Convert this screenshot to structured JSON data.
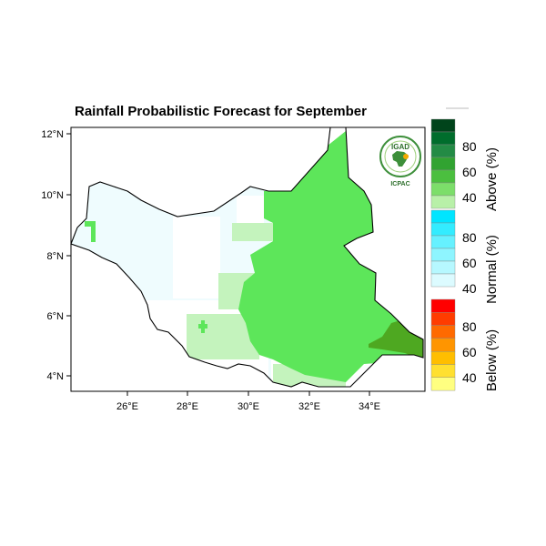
{
  "title": "Rainfall Probabilistic Forecast for September",
  "logo": {
    "top_text": "IGAD",
    "bottom_text": "ICPAC"
  },
  "axes": {
    "x_ticks": [
      "26°E",
      "28°E",
      "30°E",
      "32°E",
      "34°E"
    ],
    "y_ticks": [
      "12°N",
      "10°N",
      "8°N",
      "6°N",
      "4°N"
    ]
  },
  "legend": {
    "above": {
      "title": "Above (%)",
      "labels": [
        "80",
        "60",
        "40"
      ],
      "colors": [
        "#00441b",
        "#006d2c",
        "#238b45",
        "#31a331",
        "#4bbf3f",
        "#7cde6a",
        "#b8f0a8"
      ]
    },
    "normal": {
      "title": "Normal (%)",
      "labels": [
        "80",
        "60",
        "40"
      ],
      "colors": [
        "#00e5ff",
        "#33ecff",
        "#66f1ff",
        "#8ef5ff",
        "#b6f8ff",
        "#dcfbff"
      ]
    },
    "below": {
      "title": "Below (%)",
      "labels": [
        "80",
        "60",
        "40"
      ],
      "colors": [
        "#ff0000",
        "#ff3c00",
        "#ff6a00",
        "#ff9500",
        "#ffbe00",
        "#ffe030",
        "#ffff80"
      ]
    }
  },
  "colors": {
    "above_light": "#5de65a",
    "above_pale": "#c4f3bd",
    "above_dark": "#4ea821",
    "normal_pale": "#effcfe"
  }
}
